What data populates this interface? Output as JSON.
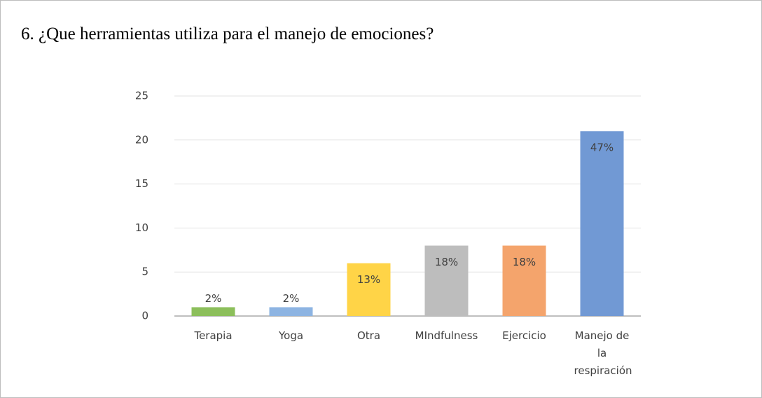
{
  "chart_data": {
    "type": "bar",
    "title": "6. ¿Que herramientas utiliza para el manejo de emociones?",
    "categories": [
      "Terapia",
      "Yoga",
      "Otra",
      "MIndfulness",
      "Ejercicio",
      "Manejo de la respiración"
    ],
    "values": [
      1,
      1,
      6,
      8,
      8,
      21
    ],
    "bar_labels": [
      "2%",
      "2%",
      "13%",
      "18%",
      "18%",
      "47%"
    ],
    "colors": [
      "#8cbf5b",
      "#8db4e2",
      "#ffd447",
      "#bdbdbd",
      "#f4a46c",
      "#7199d4"
    ],
    "ylim": [
      0,
      25
    ],
    "yticks": [
      0,
      5,
      10,
      15,
      20,
      25
    ],
    "grid": true
  }
}
